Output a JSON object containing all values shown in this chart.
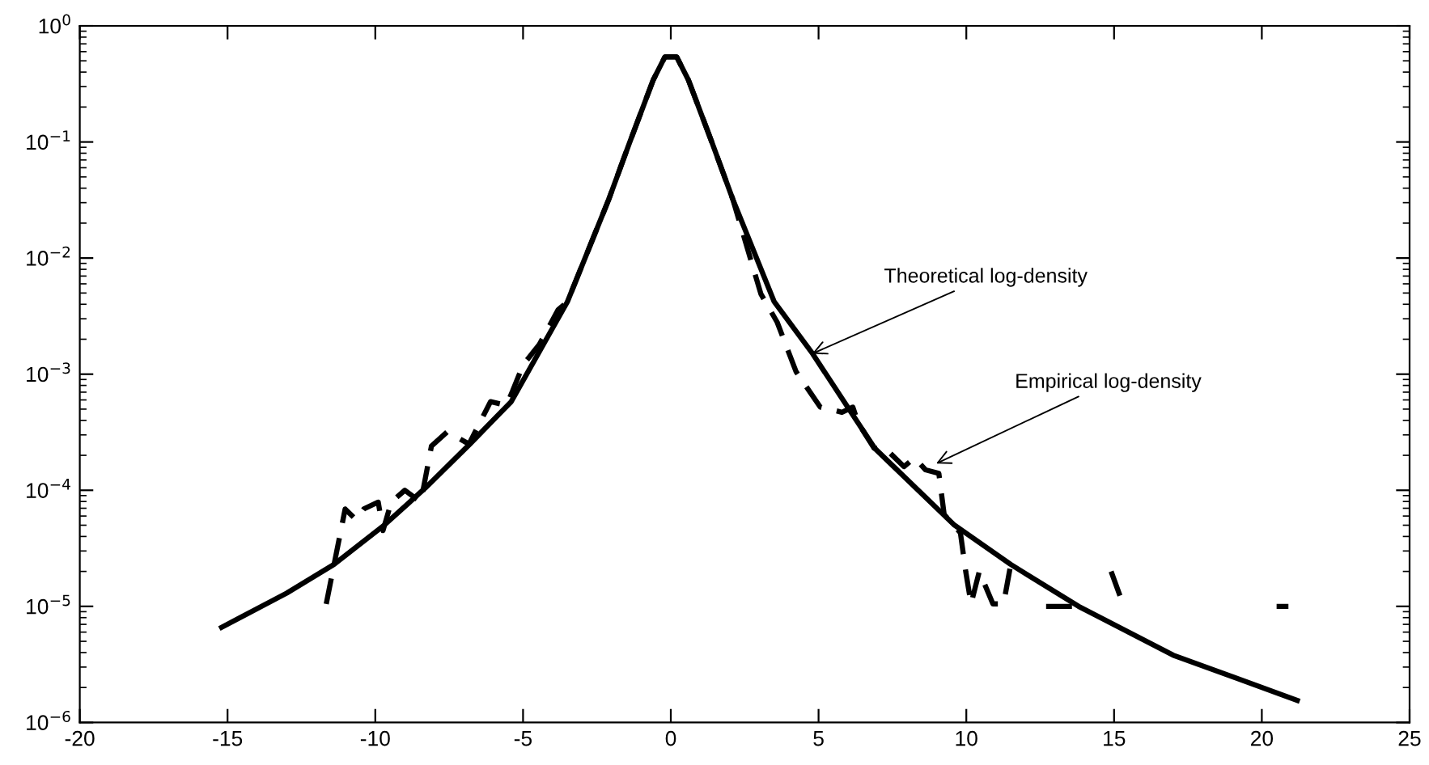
{
  "chart_data": {
    "type": "line",
    "log": "y",
    "xlim": [
      -20,
      25
    ],
    "xticks": [
      -20,
      -15,
      -10,
      -5,
      0,
      5,
      10,
      15,
      20,
      25
    ],
    "ylim": [
      1e-06,
      1
    ],
    "yticks": [
      {
        "value": 1e-06,
        "label": "10$^{−6}$"
      },
      {
        "value": 1e-05,
        "label": "10$^{−5}$"
      },
      {
        "value": 0.0001,
        "label": "10$^{−4}$"
      },
      {
        "value": 0.001,
        "label": "10$^{−3}$"
      },
      {
        "value": 0.01,
        "label": "10$^{−2}$"
      },
      {
        "value": 0.1,
        "label": "10$^{−1}$"
      },
      {
        "value": 1,
        "label": "10$^{0}$"
      }
    ],
    "grid": false,
    "legend": false,
    "marker": "none",
    "series": [
      {
        "color": "#000000",
        "line_style": "solid",
        "x": [
          -15.2,
          -13,
          -11.4,
          -9.7,
          -8.3,
          -6.8,
          -5.4,
          -3.5,
          -2.1,
          -1.4,
          -0.6,
          -0.2,
          0.2,
          0.6,
          1.4,
          2.1,
          3.5,
          4.8,
          6.9,
          9.6,
          11.5,
          13.8,
          17,
          21.2
        ],
        "values": [
          6.6e-06,
          1.3e-05,
          2.3e-05,
          5e-05,
          0.000105,
          0.00025,
          0.00058,
          0.0042,
          0.032,
          0.098,
          0.34,
          0.54,
          0.54,
          0.34,
          0.098,
          0.032,
          0.0042,
          0.0015,
          0.00023,
          5e-05,
          2.3e-05,
          1e-05,
          3.8e-06,
          1.55e-06
        ]
      },
      {
        "color": "#000000",
        "line_style": "dashed",
        "x": [
          -11.66,
          -11.02,
          -10.66,
          -10.39,
          -9.9,
          -9.74,
          -9.46,
          -9.0,
          -8.46,
          -8.1,
          -7.56,
          -6.83,
          -6.1,
          -5.56,
          -5.36,
          -5.0,
          -4.45,
          -3.81,
          -3.5,
          -2.1,
          -1.4,
          -0.6,
          -0.2,
          0.2,
          0.6,
          1.4,
          2.1,
          3.05,
          3.6,
          4.24,
          5.06,
          5.79,
          6.16,
          6.34,
          6.88,
          7.25,
          7.89,
          8.25,
          8.62,
          9.07,
          9.25,
          9.8,
          9.98,
          10.16,
          10.44,
          10.9,
          11.26,
          11.53,
          12.1,
          12.7,
          13.9,
          14.4,
          14.9,
          15.3,
          18,
          20.5,
          20.9
        ],
        "values": [
          1.05e-05,
          6.9e-05,
          5.6e-05,
          6.9e-05,
          7.9e-05,
          4.5e-05,
          7.9e-05,
          0.0001,
          7.9e-05,
          0.00024,
          0.00032,
          0.00025,
          0.00058,
          0.00054,
          0.00071,
          0.0012,
          0.0018,
          0.0036,
          0.0042,
          0.032,
          0.098,
          0.34,
          0.54,
          0.54,
          0.34,
          0.098,
          0.032,
          0.0049,
          0.0028,
          0.00105,
          0.00052,
          0.00047,
          0.00052,
          0.00038,
          0.00023,
          0.00023,
          0.00016,
          0.00019,
          0.00015,
          0.00014,
          6.2e-05,
          4.3e-05,
          2e-05,
          1.05e-05,
          2e-05,
          1.05e-05,
          1.05e-05,
          2.5e-05,
          null,
          1e-05,
          1e-05,
          null,
          2e-05,
          1.05e-05,
          null,
          1e-05,
          1e-05
        ]
      }
    ],
    "annotations": [
      {
        "text": "Theoretical log-density",
        "x": 4.78,
        "y": 0.0015
      },
      {
        "text": "Empirical log-density",
        "x": 8.98,
        "y": 0.00017
      }
    ]
  }
}
